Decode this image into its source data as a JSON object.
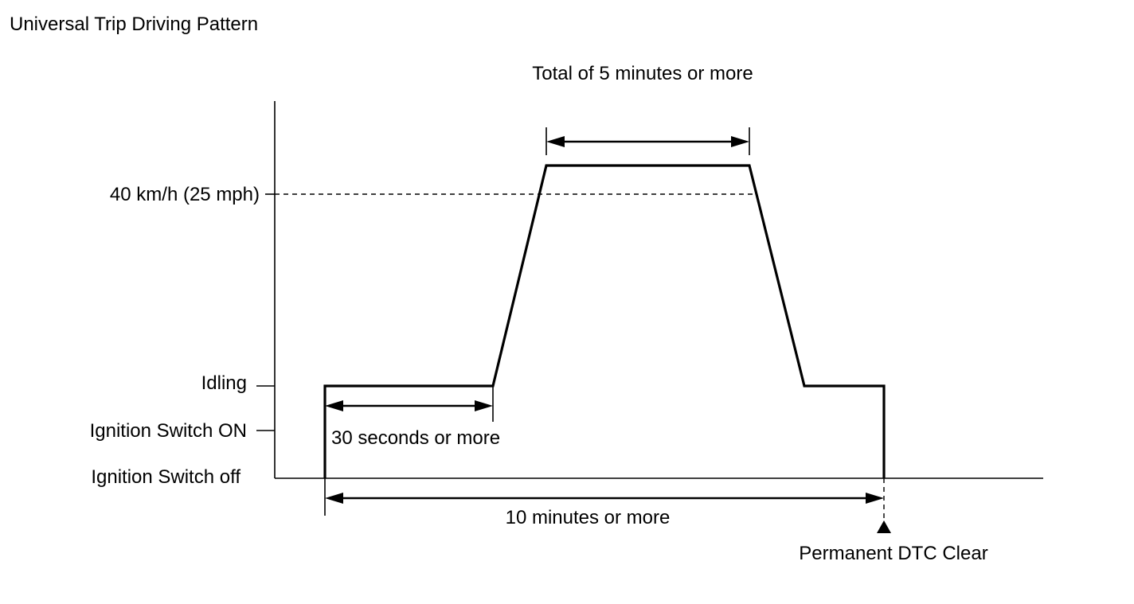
{
  "title": "Universal Trip Driving Pattern",
  "levels": {
    "speed": "40 km/h (25 mph)",
    "idling": "Idling",
    "ignition_on": "Ignition Switch ON",
    "ignition_off": "Ignition Switch off"
  },
  "durations": {
    "high_speed": "Total of 5 minutes or more",
    "idle": "30 seconds or more",
    "total": "10 minutes or more"
  },
  "event": "Permanent DTC Clear"
}
